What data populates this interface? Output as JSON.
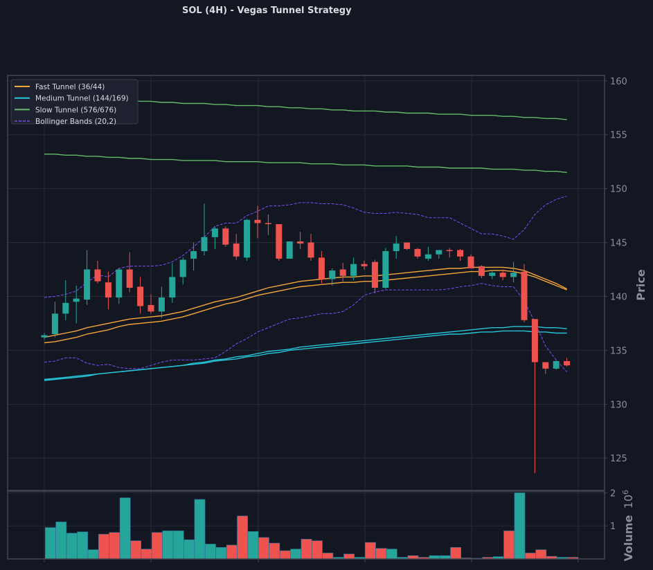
{
  "chart_data": [
    {
      "type": "candlestick",
      "title": "SOL (4H) - Vegas Tunnel Strategy",
      "ylabel": "Price",
      "ylim": [
        122,
        160.5
      ],
      "yticks": [
        125,
        130,
        135,
        140,
        145,
        150,
        155,
        160
      ],
      "grid": true,
      "legend_position": "top-left",
      "legend": [
        {
          "label": "Fast Tunnel (36/44)",
          "color": "#f6a73a",
          "style": "solid"
        },
        {
          "label": "Medium Tunnel (144/169)",
          "color": "#26c6da",
          "style": "solid"
        },
        {
          "label": "Slow Tunnel (576/676)",
          "color": "#66bb6a",
          "style": "solid"
        },
        {
          "label": "Bollinger Bands (20,2)",
          "color": "#7c4dff",
          "style": "dashed"
        }
      ],
      "colors": {
        "up": "#26a69a",
        "down": "#ef5350",
        "grid": "#262b38",
        "axis": "#434651"
      },
      "candles": [
        [
          136.2,
          136.6,
          136.0,
          136.4
        ],
        [
          136.5,
          139.5,
          136.2,
          138.4
        ],
        [
          138.4,
          141.5,
          137.8,
          139.4
        ],
        [
          139.5,
          141.0,
          137.5,
          139.8
        ],
        [
          139.7,
          144.3,
          139.2,
          142.5
        ],
        [
          142.5,
          143.3,
          141.2,
          141.4
        ],
        [
          141.3,
          142.3,
          138.8,
          139.9
        ],
        [
          139.9,
          142.6,
          139.3,
          142.5
        ],
        [
          142.5,
          144.1,
          140.4,
          140.8
        ],
        [
          140.9,
          141.8,
          138.4,
          139.1
        ],
        [
          139.2,
          140.2,
          138.4,
          138.6
        ],
        [
          138.6,
          140.9,
          138.0,
          139.9
        ],
        [
          139.9,
          143.1,
          139.4,
          141.8
        ],
        [
          141.8,
          143.6,
          141.1,
          143.4
        ],
        [
          143.5,
          145.0,
          142.4,
          144.2
        ],
        [
          144.2,
          148.6,
          143.8,
          145.5
        ],
        [
          145.5,
          146.5,
          144.4,
          146.3
        ],
        [
          146.3,
          146.5,
          144.6,
          144.8
        ],
        [
          144.9,
          145.8,
          143.4,
          143.7
        ],
        [
          143.6,
          147.2,
          143.3,
          147.1
        ],
        [
          147.1,
          148.4,
          145.4,
          146.8
        ],
        [
          146.8,
          147.6,
          145.7,
          146.7
        ],
        [
          146.7,
          146.7,
          143.3,
          143.5
        ],
        [
          143.5,
          145.1,
          143.5,
          145.1
        ],
        [
          145.1,
          146.0,
          144.4,
          144.9
        ],
        [
          145.0,
          145.8,
          143.3,
          143.6
        ],
        [
          143.6,
          144.2,
          141.2,
          141.6
        ],
        [
          141.6,
          142.6,
          141.0,
          142.4
        ],
        [
          142.5,
          143.1,
          141.4,
          141.9
        ],
        [
          141.9,
          143.6,
          141.5,
          143.0
        ],
        [
          143.0,
          143.3,
          142.5,
          142.8
        ],
        [
          143.2,
          143.4,
          140.3,
          140.8
        ],
        [
          140.8,
          144.5,
          140.7,
          144.2
        ],
        [
          144.2,
          145.6,
          143.5,
          144.9
        ],
        [
          145.0,
          145.0,
          144.3,
          144.4
        ],
        [
          144.4,
          144.5,
          143.5,
          143.7
        ],
        [
          143.5,
          144.6,
          143.3,
          143.9
        ],
        [
          143.9,
          144.3,
          143.5,
          144.3
        ],
        [
          144.3,
          144.5,
          143.6,
          144.2
        ],
        [
          144.3,
          144.4,
          143.3,
          143.7
        ],
        [
          143.7,
          143.9,
          142.7,
          142.6
        ],
        [
          142.8,
          142.9,
          141.7,
          141.9
        ],
        [
          141.9,
          142.4,
          141.6,
          142.2
        ],
        [
          142.2,
          142.5,
          141.5,
          141.8
        ],
        [
          141.8,
          143.2,
          141.3,
          142.2
        ],
        [
          142.3,
          143.0,
          137.6,
          137.8
        ],
        [
          137.9,
          137.9,
          123.6,
          133.9
        ],
        [
          133.9,
          133.9,
          132.8,
          133.3
        ],
        [
          133.3,
          134.1,
          133.2,
          134.0
        ],
        [
          134.0,
          134.3,
          133.5,
          133.6
        ]
      ],
      "series": [
        {
          "name": "Fast Tunnel (36/44)",
          "color": "#f6a73a",
          "lines": [
            [
              136.2,
              136.4,
              136.6,
              136.8,
              137.1,
              137.3,
              137.5,
              137.7,
              137.9,
              138.0,
              138.1,
              138.2,
              138.4,
              138.6,
              138.9,
              139.2,
              139.5,
              139.7,
              139.9,
              140.2,
              140.5,
              140.8,
              141.0,
              141.2,
              141.4,
              141.5,
              141.6,
              141.7,
              141.8,
              141.8,
              141.9,
              141.9,
              142.0,
              142.1,
              142.2,
              142.3,
              142.4,
              142.5,
              142.6,
              142.6,
              142.7,
              142.7,
              142.7,
              142.7,
              142.6,
              142.4,
              142.0,
              141.6,
              141.2,
              140.7
            ],
            [
              135.7,
              135.8,
              136.0,
              136.2,
              136.5,
              136.7,
              136.9,
              137.2,
              137.4,
              137.5,
              137.6,
              137.7,
              137.9,
              138.1,
              138.4,
              138.7,
              139.0,
              139.3,
              139.5,
              139.8,
              140.1,
              140.3,
              140.5,
              140.7,
              140.9,
              141.0,
              141.1,
              141.2,
              141.3,
              141.3,
              141.4,
              141.4,
              141.5,
              141.6,
              141.7,
              141.8,
              141.9,
              142.0,
              142.1,
              142.2,
              142.3,
              142.3,
              142.4,
              142.4,
              142.3,
              142.1,
              141.8,
              141.4,
              141.0,
              140.6
            ]
          ]
        },
        {
          "name": "Medium Tunnel (144/169)",
          "color": "#26c6da",
          "lines": [
            [
              132.3,
              132.4,
              132.5,
              132.6,
              132.7,
              132.8,
              132.9,
              133.0,
              133.1,
              133.2,
              133.3,
              133.4,
              133.5,
              133.6,
              133.8,
              133.9,
              134.1,
              134.2,
              134.4,
              134.5,
              134.7,
              134.9,
              135.0,
              135.1,
              135.3,
              135.4,
              135.5,
              135.6,
              135.7,
              135.8,
              135.9,
              136.0,
              136.1,
              136.2,
              136.3,
              136.4,
              136.5,
              136.6,
              136.7,
              136.8,
              136.9,
              137.0,
              137.1,
              137.1,
              137.2,
              137.2,
              137.2,
              137.1,
              137.1,
              137.0
            ],
            [
              132.2,
              132.3,
              132.4,
              132.5,
              132.6,
              132.8,
              132.9,
              133.0,
              133.1,
              133.2,
              133.3,
              133.4,
              133.5,
              133.6,
              133.7,
              133.8,
              134.0,
              134.1,
              134.2,
              134.4,
              134.5,
              134.7,
              134.8,
              135.0,
              135.1,
              135.2,
              135.3,
              135.4,
              135.5,
              135.6,
              135.7,
              135.8,
              135.9,
              136.0,
              136.1,
              136.2,
              136.3,
              136.4,
              136.5,
              136.5,
              136.6,
              136.7,
              136.7,
              136.8,
              136.8,
              136.8,
              136.7,
              136.7,
              136.6,
              136.6
            ]
          ]
        },
        {
          "name": "Slow Tunnel (576/676)",
          "color": "#66bb6a",
          "lines": [
            [
              158.8,
              158.7,
              158.6,
              158.5,
              158.5,
              158.4,
              158.3,
              158.3,
              158.2,
              158.1,
              158.1,
              158.0,
              158.0,
              157.9,
              157.9,
              157.9,
              157.8,
              157.8,
              157.7,
              157.7,
              157.7,
              157.6,
              157.6,
              157.5,
              157.5,
              157.4,
              157.4,
              157.3,
              157.3,
              157.2,
              157.2,
              157.2,
              157.1,
              157.1,
              157.0,
              157.0,
              157.0,
              156.9,
              156.9,
              156.9,
              156.8,
              156.8,
              156.8,
              156.7,
              156.7,
              156.6,
              156.6,
              156.5,
              156.5,
              156.4
            ],
            [
              153.2,
              153.2,
              153.1,
              153.1,
              153.0,
              153.0,
              152.9,
              152.9,
              152.8,
              152.8,
              152.7,
              152.7,
              152.7,
              152.6,
              152.6,
              152.6,
              152.6,
              152.5,
              152.5,
              152.5,
              152.5,
              152.4,
              152.4,
              152.4,
              152.4,
              152.3,
              152.3,
              152.3,
              152.2,
              152.2,
              152.2,
              152.1,
              152.1,
              152.1,
              152.1,
              152.0,
              152.0,
              152.0,
              151.9,
              151.9,
              151.9,
              151.9,
              151.8,
              151.8,
              151.8,
              151.7,
              151.7,
              151.6,
              151.6,
              151.5
            ]
          ]
        },
        {
          "name": "Bollinger Bands (20,2)",
          "color": "#7c4dff",
          "dashed": true,
          "lines": [
            [
              139.9,
              140.0,
              140.2,
              140.5,
              141.3,
              142.0,
              141.8,
              142.6,
              142.8,
              142.8,
              142.8,
              142.9,
              143.2,
              143.8,
              144.6,
              145.5,
              146.5,
              146.8,
              146.8,
              147.5,
              147.9,
              148.4,
              148.4,
              148.5,
              148.7,
              148.7,
              148.6,
              148.6,
              148.5,
              148.2,
              147.8,
              147.7,
              147.7,
              147.8,
              147.7,
              147.6,
              147.3,
              147.3,
              147.3,
              146.8,
              146.3,
              145.8,
              145.8,
              145.6,
              145.3,
              146.2,
              147.6,
              148.5,
              149.0,
              149.3
            ],
            [
              133.9,
              134.0,
              134.3,
              134.3,
              133.8,
              133.6,
              133.7,
              133.4,
              133.3,
              133.3,
              133.6,
              133.9,
              134.1,
              134.1,
              134.1,
              134.2,
              134.3,
              134.9,
              135.6,
              136.1,
              136.7,
              137.1,
              137.5,
              137.9,
              138.0,
              138.2,
              138.4,
              138.4,
              138.6,
              139.2,
              140.1,
              140.4,
              140.6,
              140.6,
              140.6,
              140.6,
              140.6,
              140.6,
              140.7,
              140.9,
              141.0,
              141.2,
              141.0,
              140.9,
              140.9,
              139.6,
              137.6,
              135.4,
              134.1,
              133.0
            ]
          ]
        }
      ]
    },
    {
      "type": "bar",
      "ylabel": "Volume",
      "yscale_label": "1e6",
      "ylim": [
        0,
        2.05
      ],
      "yticks": [
        1,
        2
      ],
      "values": [
        0.95,
        1.12,
        0.78,
        0.82,
        0.28,
        0.75,
        0.8,
        1.85,
        0.55,
        0.3,
        0.8,
        0.85,
        0.85,
        0.58,
        1.8,
        0.45,
        0.35,
        0.42,
        1.3,
        0.83,
        0.65,
        0.48,
        0.25,
        0.3,
        0.6,
        0.55,
        0.18,
        0.05,
        0.15,
        0.05,
        0.5,
        0.32,
        0.3,
        0.05,
        0.1,
        0.05,
        0.1,
        0.1,
        0.35,
        0.03,
        0.02,
        0.05,
        0.07,
        0.85,
        2.0,
        0.18,
        0.28,
        0.08,
        0.05,
        0.05
      ]
    }
  ]
}
